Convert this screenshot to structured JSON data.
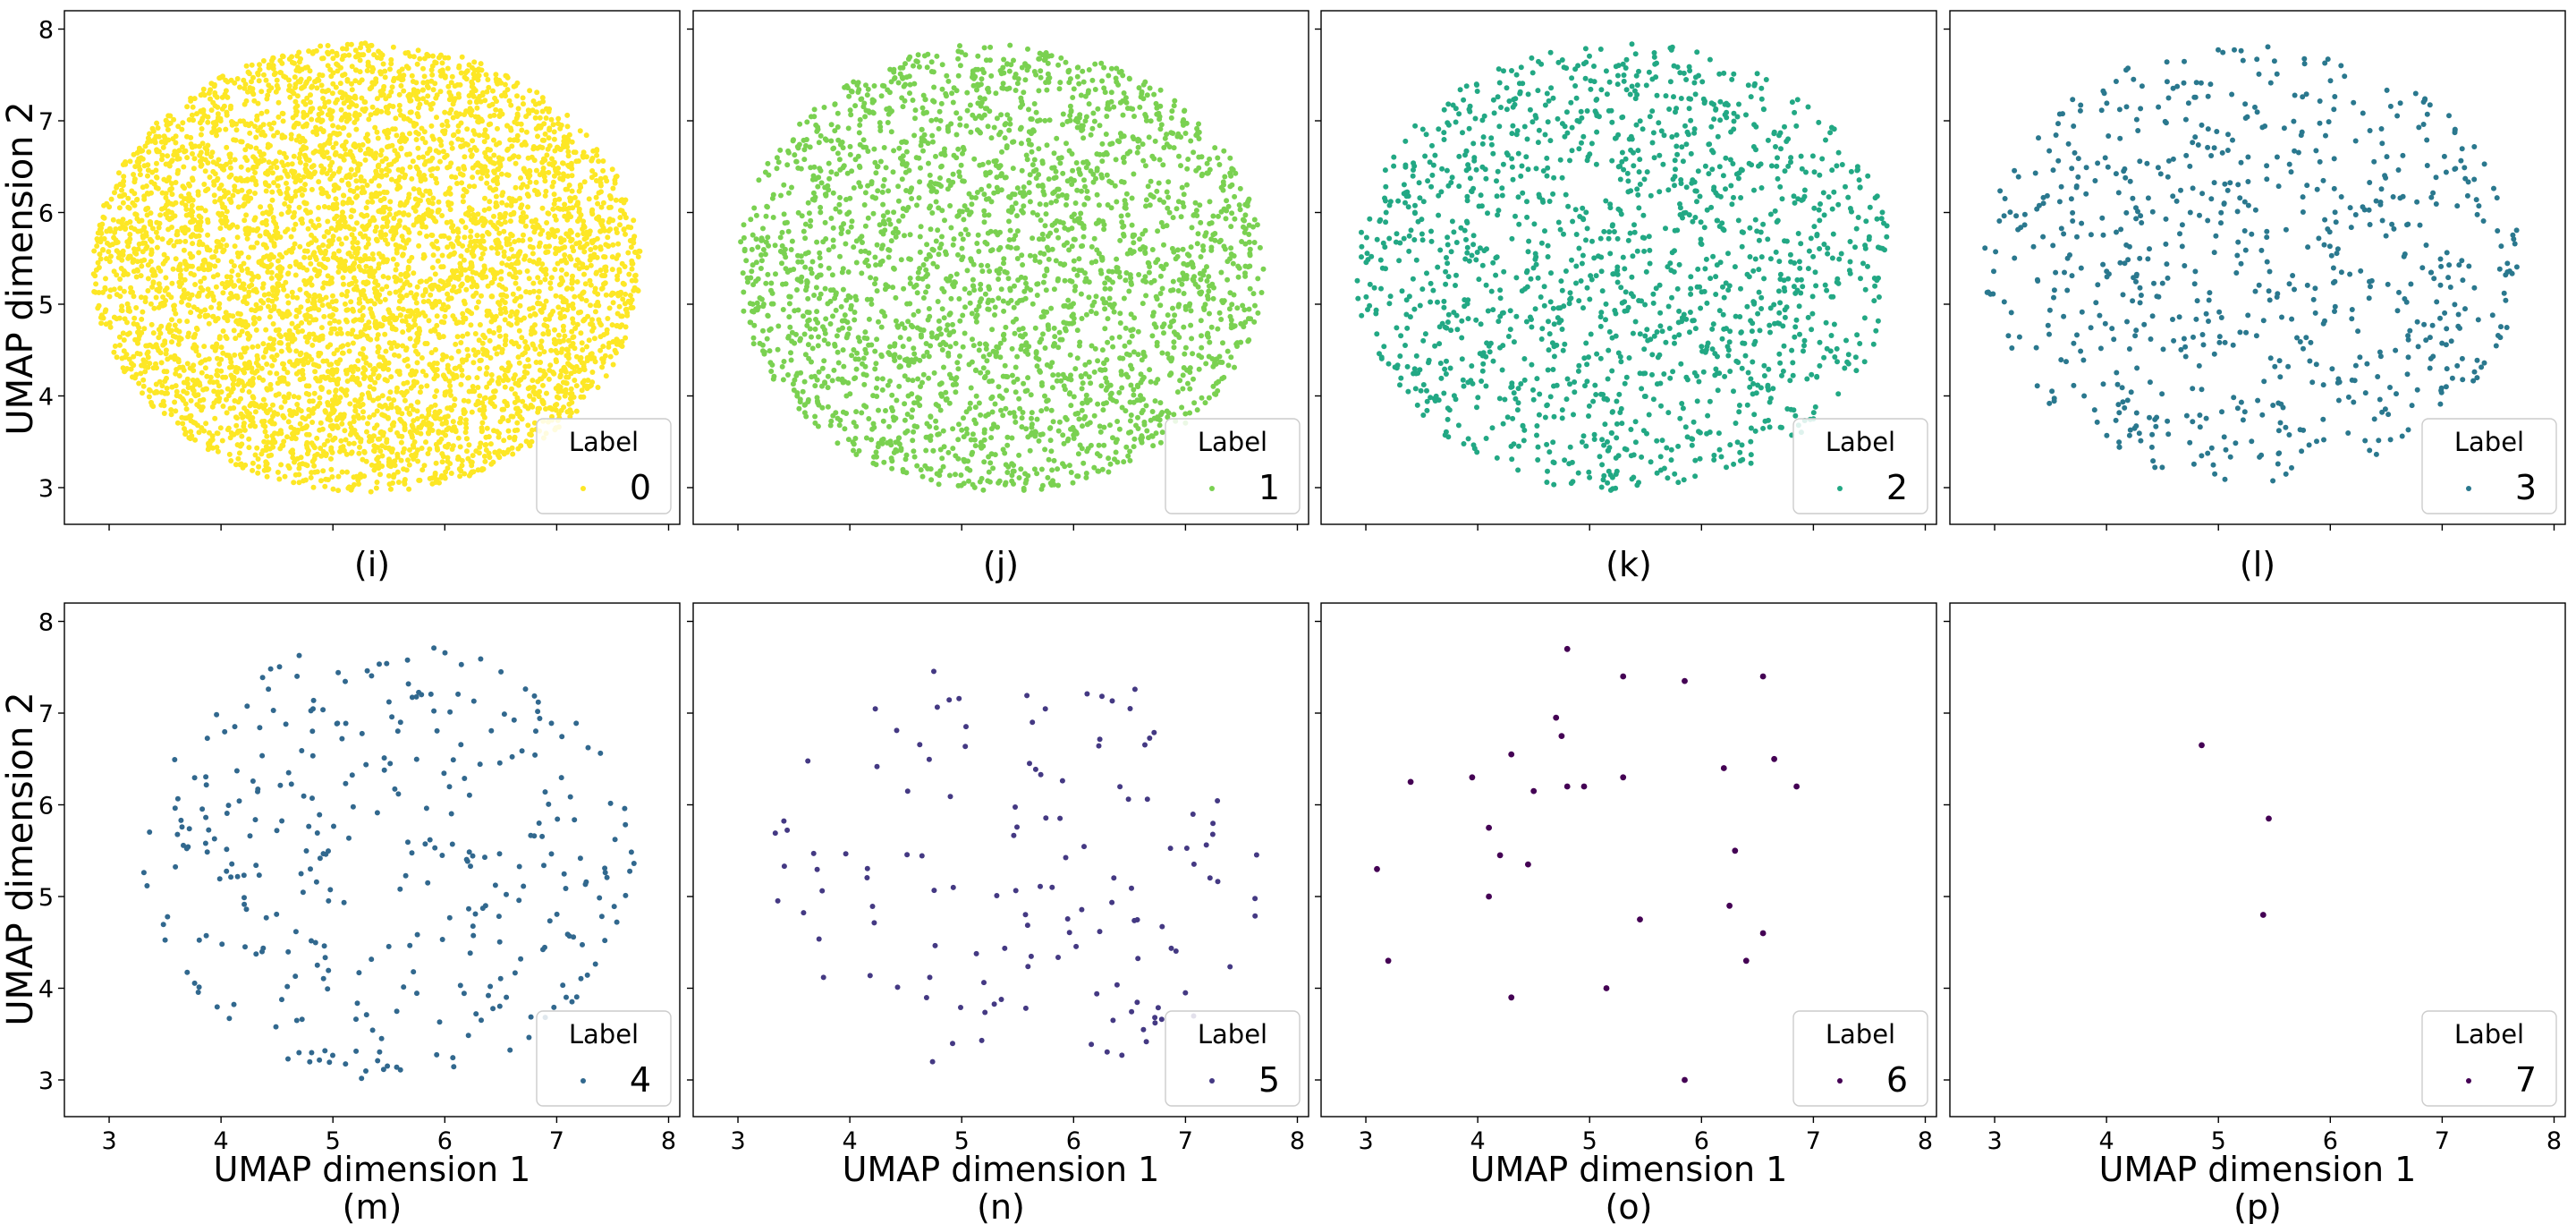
{
  "figure": {
    "y_axis_label": "UMAP dimension 2",
    "x_axis_label": "UMAP dimension 1"
  },
  "chart_data": [
    {
      "type": "scatter",
      "panel_label": "(i)",
      "legend_title": "Label",
      "legend_entry": "0",
      "color": "#fde725",
      "n_points": 5200,
      "seed": 11,
      "xlim": [
        2.6,
        8.1
      ],
      "ylim": [
        2.6,
        8.2
      ],
      "xticks": [
        3,
        4,
        5,
        6,
        7,
        8
      ],
      "yticks": [
        3,
        4,
        5,
        6,
        7,
        8
      ],
      "cluster": {
        "cx": 5.3,
        "cy": 5.4,
        "rx": 2.45,
        "ry": 2.45
      },
      "legend_position": "lower right"
    },
    {
      "type": "scatter",
      "panel_label": "(j)",
      "legend_title": "Label",
      "legend_entry": "1",
      "color": "#7ad151",
      "n_points": 2700,
      "seed": 23,
      "xlim": [
        2.6,
        8.1
      ],
      "ylim": [
        2.6,
        8.2
      ],
      "xticks": [
        3,
        4,
        5,
        6,
        7,
        8
      ],
      "yticks": [
        3,
        4,
        5,
        6,
        7,
        8
      ],
      "cluster": {
        "cx": 5.35,
        "cy": 5.4,
        "rx": 2.35,
        "ry": 2.45
      },
      "legend_position": "lower right"
    },
    {
      "type": "scatter",
      "panel_label": "(k)",
      "legend_title": "Label",
      "legend_entry": "2",
      "color": "#22a884",
      "n_points": 1500,
      "seed": 37,
      "xlim": [
        2.6,
        8.1
      ],
      "ylim": [
        2.6,
        8.2
      ],
      "xticks": [
        3,
        4,
        5,
        6,
        7,
        8
      ],
      "yticks": [
        3,
        4,
        5,
        6,
        7,
        8
      ],
      "cluster": {
        "cx": 5.3,
        "cy": 5.4,
        "rx": 2.4,
        "ry": 2.45
      },
      "legend_position": "lower right"
    },
    {
      "type": "scatter",
      "panel_label": "(l)",
      "legend_title": "Label",
      "legend_entry": "3",
      "color": "#2a788e",
      "n_points": 700,
      "seed": 41,
      "xlim": [
        2.6,
        8.1
      ],
      "ylim": [
        2.6,
        8.2
      ],
      "xticks": [
        3,
        4,
        5,
        6,
        7,
        8
      ],
      "yticks": [
        3,
        4,
        5,
        6,
        7,
        8
      ],
      "cluster": {
        "cx": 5.3,
        "cy": 5.45,
        "rx": 2.4,
        "ry": 2.4
      },
      "legend_position": "lower right"
    },
    {
      "type": "scatter",
      "panel_label": "(m)",
      "legend_title": "Label",
      "legend_entry": "4",
      "color": "#31688e",
      "n_points": 330,
      "seed": 53,
      "xlim": [
        2.6,
        8.1
      ],
      "ylim": [
        2.6,
        8.2
      ],
      "xticks": [
        3,
        4,
        5,
        6,
        7,
        8
      ],
      "yticks": [
        3,
        4,
        5,
        6,
        7,
        8
      ],
      "cluster": {
        "cx": 5.5,
        "cy": 5.4,
        "rx": 2.2,
        "ry": 2.4
      },
      "legend_position": "lower right"
    },
    {
      "type": "scatter",
      "panel_label": "(n)",
      "legend_title": "Label",
      "legend_entry": "5",
      "color": "#443983",
      "n_points": 130,
      "seed": 67,
      "xlim": [
        2.6,
        8.1
      ],
      "ylim": [
        2.6,
        8.2
      ],
      "xticks": [
        3,
        4,
        5,
        6,
        7,
        8
      ],
      "yticks": [
        3,
        4,
        5,
        6,
        7,
        8
      ],
      "cluster": {
        "cx": 5.5,
        "cy": 5.3,
        "rx": 2.2,
        "ry": 2.3
      },
      "legend_position": "lower right"
    },
    {
      "type": "scatter",
      "panel_label": "(o)",
      "legend_title": "Label",
      "legend_entry": "6",
      "color": "#440154",
      "legend_position": "lower right",
      "xlim": [
        2.6,
        8.1
      ],
      "ylim": [
        2.6,
        8.2
      ],
      "xticks": [
        3,
        4,
        5,
        6,
        7,
        8
      ],
      "yticks": [
        3,
        4,
        5,
        6,
        7,
        8
      ],
      "points": [
        [
          4.8,
          7.7
        ],
        [
          5.3,
          7.4
        ],
        [
          5.85,
          7.35
        ],
        [
          6.55,
          7.4
        ],
        [
          4.7,
          6.95
        ],
        [
          4.75,
          6.75
        ],
        [
          3.4,
          6.25
        ],
        [
          3.95,
          6.3
        ],
        [
          4.3,
          6.55
        ],
        [
          4.5,
          6.15
        ],
        [
          4.8,
          6.2
        ],
        [
          4.95,
          6.2
        ],
        [
          5.3,
          6.3
        ],
        [
          6.2,
          6.4
        ],
        [
          6.65,
          6.5
        ],
        [
          6.85,
          6.2
        ],
        [
          4.1,
          5.75
        ],
        [
          4.2,
          5.45
        ],
        [
          4.45,
          5.35
        ],
        [
          3.1,
          5.3
        ],
        [
          6.3,
          5.5
        ],
        [
          4.1,
          5.0
        ],
        [
          5.45,
          4.75
        ],
        [
          6.25,
          4.9
        ],
        [
          6.55,
          4.6
        ],
        [
          3.2,
          4.3
        ],
        [
          6.4,
          4.3
        ],
        [
          4.3,
          3.9
        ],
        [
          5.15,
          4.0
        ],
        [
          5.85,
          3.0
        ]
      ]
    },
    {
      "type": "scatter",
      "panel_label": "(p)",
      "legend_title": "Label",
      "legend_entry": "7",
      "color": "#440154",
      "legend_position": "lower right",
      "xlim": [
        2.6,
        8.1
      ],
      "ylim": [
        2.6,
        8.2
      ],
      "xticks": [
        3,
        4,
        5,
        6,
        7,
        8
      ],
      "yticks": [
        3,
        4,
        5,
        6,
        7,
        8
      ],
      "points": [
        [
          4.85,
          6.65
        ],
        [
          5.45,
          5.85
        ],
        [
          5.4,
          4.8
        ]
      ]
    }
  ]
}
